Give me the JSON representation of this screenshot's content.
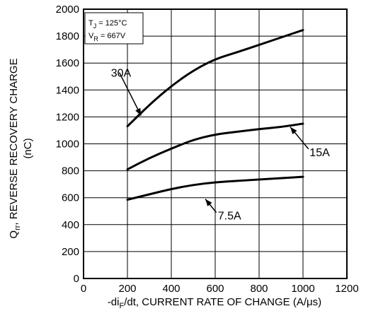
{
  "chart_data": {
    "type": "line",
    "conditions": {
      "tj_main": "T",
      "tj_sub": "J",
      "tj_value": " = 125°C",
      "vr_main": "V",
      "vr_sub": "R",
      "vr_value": " = 667V"
    },
    "ylabel": {
      "main": "Q",
      "sub": "rr",
      "rest": ", REVERSE RECOVERY CHARGE",
      "unit": "(nC)"
    },
    "xlabel": {
      "main": "-di",
      "sub": "F",
      "rest": "/dt, CURRENT RATE OF CHANGE (A/μs)"
    },
    "xlim": [
      0,
      1200
    ],
    "ylim": [
      0,
      2000
    ],
    "x_ticks": [
      0,
      200,
      400,
      600,
      800,
      1000,
      1200
    ],
    "y_ticks": [
      0,
      200,
      400,
      600,
      800,
      1000,
      1200,
      1400,
      1600,
      1800,
      2000
    ],
    "x_tick_labels": [
      "0",
      "200",
      "400",
      "600",
      "800",
      "1000",
      "1200"
    ],
    "y_tick_labels": [
      "0",
      "200",
      "400",
      "600",
      "800",
      "1000",
      "1200",
      "1400",
      "1600",
      "1800",
      "2000"
    ],
    "grid": true,
    "series": [
      {
        "name": "30A",
        "x": [
          200,
          300,
          400,
          500,
          600,
          700,
          800,
          900,
          1000
        ],
        "y": [
          1130,
          1290,
          1430,
          1545,
          1630,
          1680,
          1735,
          1790,
          1845
        ]
      },
      {
        "name": "15A",
        "x": [
          200,
          300,
          400,
          500,
          600,
          700,
          800,
          900,
          1000
        ],
        "y": [
          810,
          895,
          965,
          1030,
          1070,
          1090,
          1110,
          1125,
          1150
        ]
      },
      {
        "name": "7.5A",
        "x": [
          200,
          300,
          400,
          500,
          600,
          700,
          800,
          900,
          1000
        ],
        "y": [
          585,
          625,
          665,
          695,
          715,
          725,
          735,
          745,
          755
        ]
      }
    ],
    "annotations": [
      {
        "text": "30A",
        "label_x": 125,
        "label_y": 1530,
        "anchor": "start",
        "arrow_from": [
          163,
          1530
        ],
        "arrow_to": [
          262,
          1210
        ]
      },
      {
        "text": "15A",
        "label_x": 1030,
        "label_y": 940,
        "anchor": "start",
        "arrow_from": [
          1025,
          962
        ],
        "arrow_to": [
          942,
          1125
        ]
      },
      {
        "text": "7.5A",
        "label_x": 612,
        "label_y": 470,
        "anchor": "start",
        "arrow_from": [
          605,
          490
        ],
        "arrow_to": [
          555,
          590
        ]
      }
    ]
  }
}
